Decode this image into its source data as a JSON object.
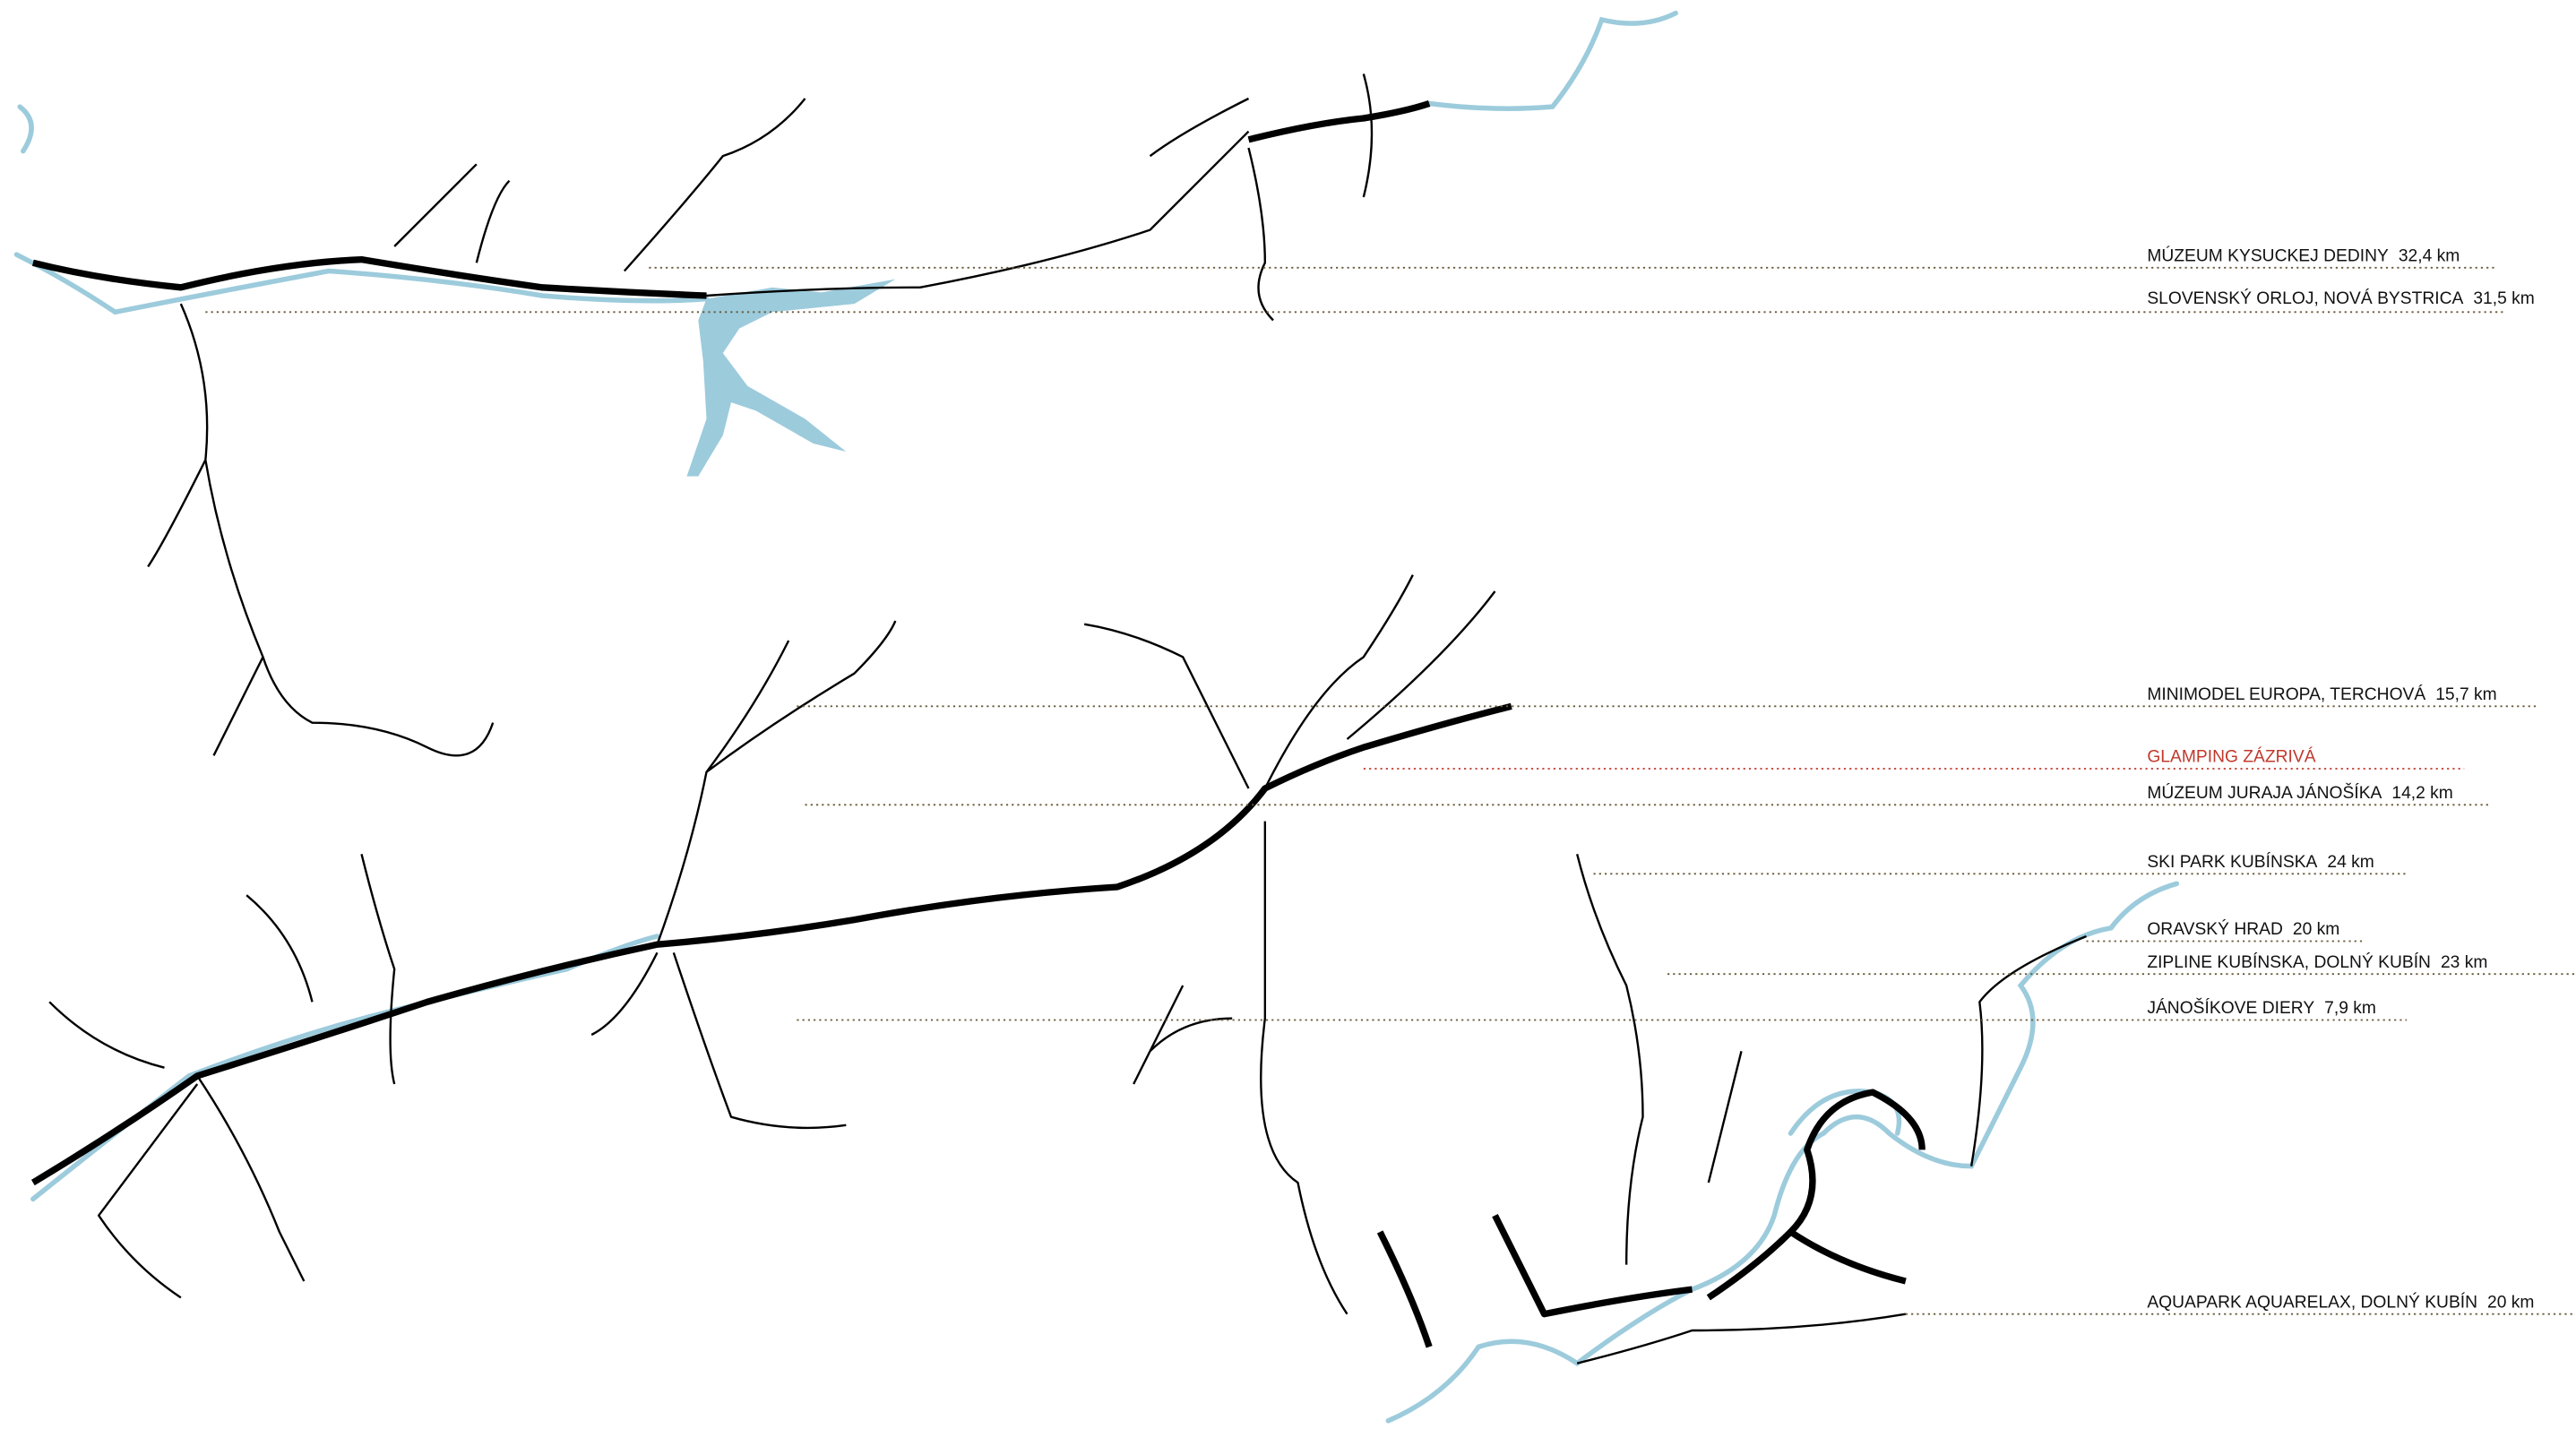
{
  "labels": [
    {
      "name": "MÚZEUM KYSUCKEJ DEDINY",
      "distance": "32,4 km"
    },
    {
      "name": "SLOVENSKÝ ORLOJ, NOVÁ BYSTRICA",
      "distance": "31,5 km"
    },
    {
      "name": "MINIMODEL EUROPA, TERCHOVÁ",
      "distance": "15,7 km"
    },
    {
      "name": "GLAMPING ZÁZRIVÁ"
    },
    {
      "name": "MÚZEUM JURAJA JÁNOŠÍKA",
      "distance": "14,2 km"
    },
    {
      "name": "SKI PARK KUBÍNSKA",
      "distance": "24 km"
    },
    {
      "name": "ORAVSKÝ HRAD",
      "distance": "20 km"
    },
    {
      "name": "ZIPLINE KUBÍNSKA, DOLNÝ KUBÍN",
      "distance": "23 km"
    },
    {
      "name": "JÁNOŠÍKOVE DIERY",
      "distance": "7,9 km"
    },
    {
      "name": "AQUAPARK AQUARELAX, DOLNÝ KUBÍN",
      "distance": "20 km"
    }
  ]
}
